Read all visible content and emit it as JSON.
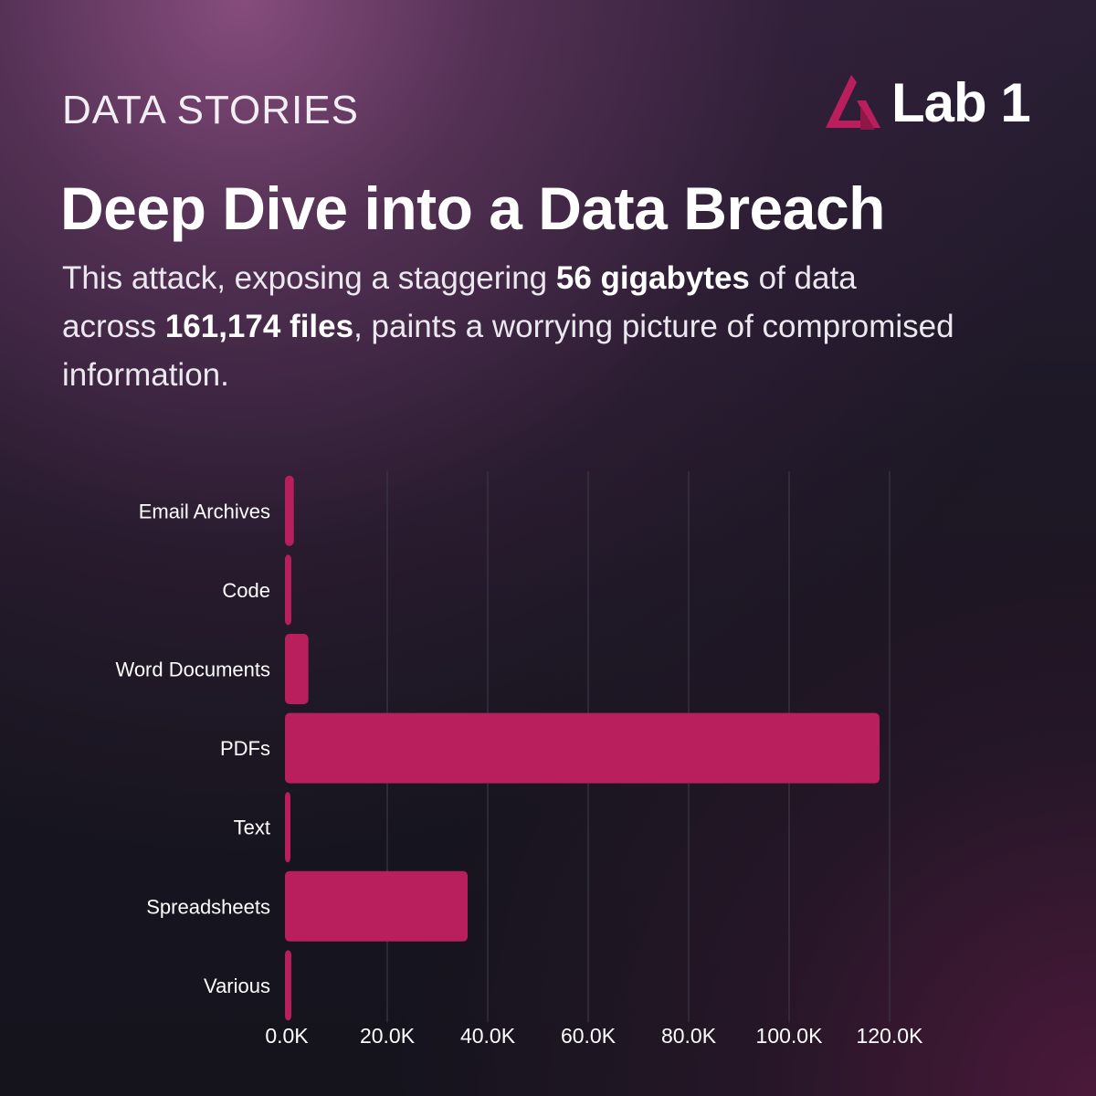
{
  "header": {
    "kicker": "DATA STORIES",
    "logo_text": "Lab 1",
    "logo_icon": "flask-triangle-icon",
    "title": "Deep Dive into a Data Breach",
    "subtitle": {
      "part1": "This attack, exposing a staggering ",
      "bold1": "56 gigabytes",
      "part2": " of data across ",
      "bold2": "161,174 files",
      "part3": ", paints a worrying picture of compromised information."
    }
  },
  "colors": {
    "accent": "#b81f5c",
    "gridline": "#3a3846"
  },
  "chart_data": {
    "type": "bar",
    "orientation": "horizontal",
    "categories": [
      "Email Archives",
      "Code",
      "Word Documents",
      "PDFs",
      "Text",
      "Spreadsheets",
      "Various"
    ],
    "values": [
      1400,
      900,
      4300,
      118000,
      500,
      36000,
      900
    ],
    "xlim": [
      0,
      120000
    ],
    "xticks": [
      0,
      20000,
      40000,
      60000,
      80000,
      100000,
      120000
    ],
    "xtick_labels": [
      "0.0K",
      "20.0K",
      "40.0K",
      "60.0K",
      "80.0K",
      "100.0K",
      "120.0K"
    ],
    "grid": "vertical"
  }
}
